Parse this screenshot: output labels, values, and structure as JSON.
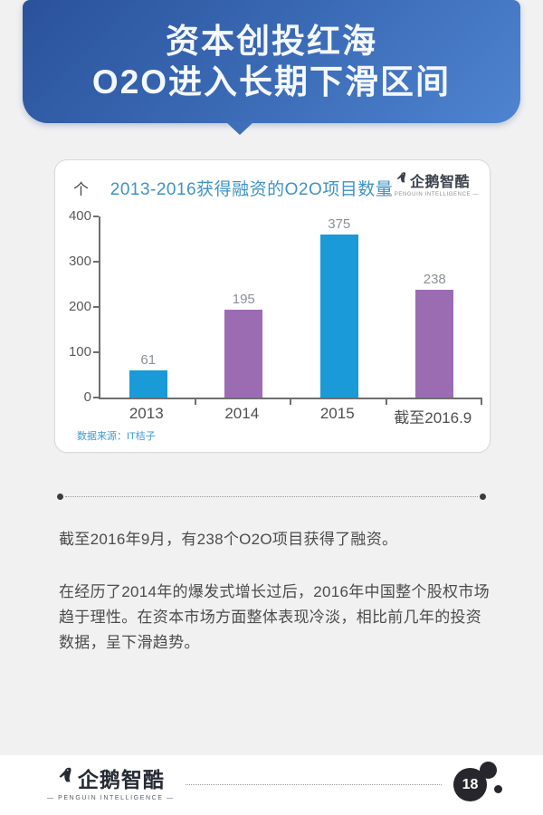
{
  "header": {
    "title_line1": "资本创投红海",
    "title_line2": "O2O进入长期下滑区间"
  },
  "chart_card": {
    "unit_label": "个",
    "title": "2013-2016获得融资的O2O项目数量",
    "brand": {
      "name": "企鹅智酷",
      "tagline": "— PENGUIN INTELLIGENCE —"
    },
    "source": "数据来源：IT桔子"
  },
  "chart_data": {
    "type": "bar",
    "title": "2013-2016获得融资的O2O项目数量",
    "categories": [
      "2013",
      "2014",
      "2015",
      "截至2016.9"
    ],
    "values": [
      61,
      195,
      375,
      238
    ],
    "bar_colors": [
      "#1a9ad6",
      "#9c6cb2",
      "#1a9ad6",
      "#9c6cb2"
    ],
    "xlabel": "",
    "ylabel": "个",
    "ylim": [
      0,
      400
    ],
    "yticks": [
      0,
      100,
      200,
      300,
      400
    ],
    "grid": false,
    "legend_position": "none",
    "value_label_color": "#8b9198",
    "source": "数据来源：IT桔子"
  },
  "paragraphs": {
    "p1": "截至2016年9月，有238个O2O项目获得了融资。",
    "p2": "在经历了2014年的爆发式增长过后，2016年中国整个股权市场趋于理性。在资本市场方面整体表现冷淡，相比前几年的投资数据，呈下滑趋势。"
  },
  "footer": {
    "brand": {
      "name": "企鹅智酷",
      "tagline": "— PENGUIN INTELLIGENCE —"
    },
    "page_number": "18"
  },
  "colors": {
    "background": "#f1f1f2",
    "header_gradient_start": "#2a529b",
    "header_gradient_end": "#4e84d0",
    "bar_blue": "#1a9ad6",
    "bar_purple": "#9c6cb2",
    "chart_title_blue": "#3e93c6",
    "source_blue": "#3e9ad1",
    "body_text": "#4c4c4c",
    "badge_dark": "#26262c"
  }
}
